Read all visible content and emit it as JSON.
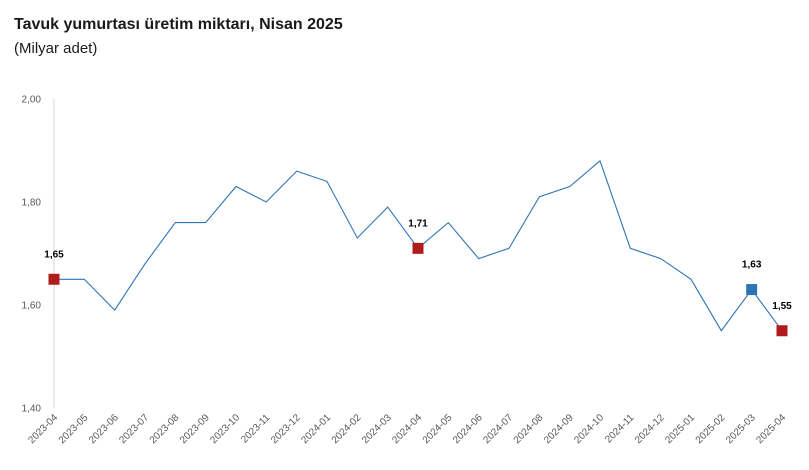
{
  "header": {
    "title": "Tavuk yumurtası üretim miktarı, Nisan 2025",
    "subtitle": "(Milyar adet)"
  },
  "chart_data": {
    "type": "line",
    "title": "Tavuk yumurtası üretim miktarı, Nisan 2025",
    "subtitle": "(Milyar adet)",
    "xlabel": "",
    "ylabel": "",
    "ylim": [
      1.4,
      2.0
    ],
    "yticks": [
      "1,40",
      "1,60",
      "1,80",
      "2,00"
    ],
    "grid": false,
    "legend": "none",
    "x": [
      "2023-04",
      "2023-05",
      "2023-06",
      "2023-07",
      "2023-08",
      "2023-09",
      "2023-10",
      "2023-11",
      "2023-12",
      "2024-01",
      "2024-02",
      "2024-03",
      "2024-04",
      "2024-05",
      "2024-06",
      "2024-07",
      "2024-08",
      "2024-09",
      "2024-10",
      "2024-11",
      "2024-12",
      "2025-01",
      "2025-02",
      "2025-03",
      "2025-04"
    ],
    "series": [
      {
        "values": [
          1.65,
          1.65,
          1.59,
          1.68,
          1.76,
          1.76,
          1.83,
          1.8,
          1.86,
          1.84,
          1.73,
          1.79,
          1.71,
          1.76,
          1.69,
          1.71,
          1.81,
          1.83,
          1.88,
          1.71,
          1.69,
          1.65,
          1.55,
          1.63,
          1.55
        ]
      }
    ],
    "markers": [
      {
        "index": 0,
        "label": "1,65",
        "color": "#b01c1c"
      },
      {
        "index": 12,
        "label": "1,71",
        "color": "#b01c1c"
      },
      {
        "index": 23,
        "label": "1,63",
        "color": "#2e75b6"
      },
      {
        "index": 24,
        "label": "1,55",
        "color": "#b01c1c"
      }
    ],
    "line_color": "#2e75b6",
    "axis_color": "#d9d9d9"
  }
}
